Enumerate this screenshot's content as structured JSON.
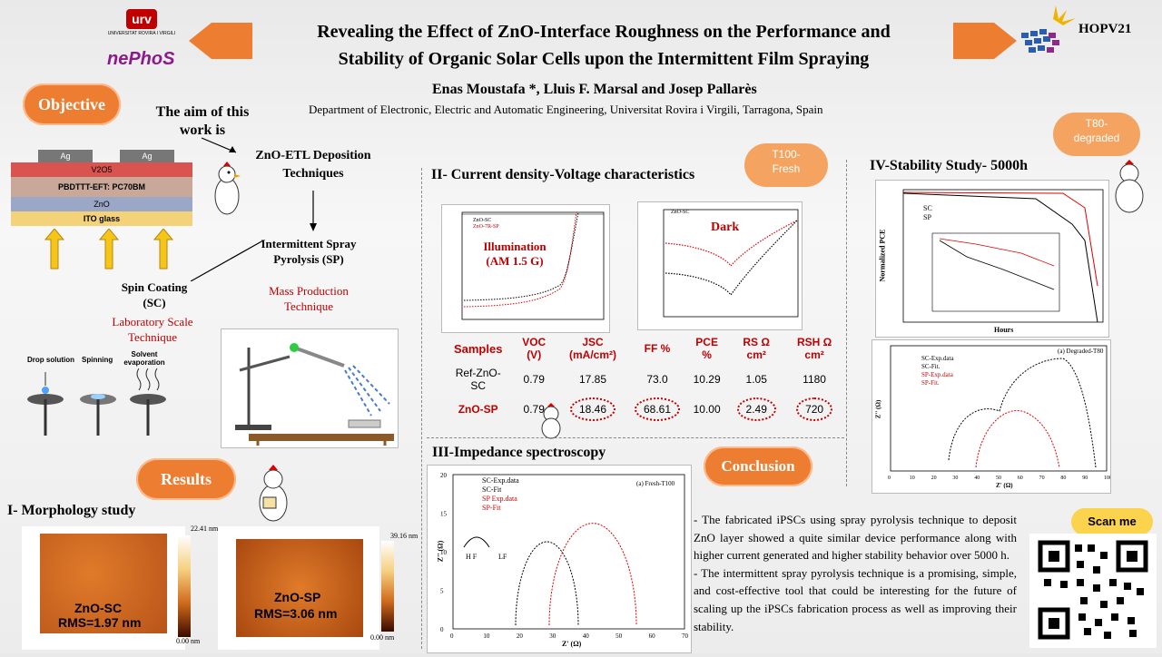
{
  "title_line1": "Revealing the Effect of ZnO-Interface Roughness on the Performance and",
  "title_line2": "Stability of Organic Solar Cells upon the Intermittent Film Spraying",
  "authors": "Enas Moustafa *, Lluis F. Marsal  and Josep Pallarès",
  "affiliation": "Department  of Electronic,  Electric  and  Automatic  Engineering,  Universitat  Rovira  i  Virgili,  Tarragona,  Spain",
  "logos": {
    "urv": "UNIVERSITAT ROVIRA I VIRGILI",
    "nepho": "nePhoS",
    "conf": "HOPV21"
  },
  "badges": {
    "objective": "Objective",
    "results": "Results",
    "conclusion": "Conclusion",
    "t100": "T100-\nFresh",
    "t80": "T80-\ndegraded",
    "scan": "Scan me"
  },
  "objective": {
    "aim": "The aim of this work is",
    "etl": "ZnO-ETL  Deposition Techniques",
    "sp_title": "Intermittent Spray Pyrolysis (SP)",
    "sp_sub": "Mass Production Technique",
    "sc_title": "Spin Coating (SC)",
    "sc_sub": "Laboratory Scale Technique",
    "steps": [
      "Drop solution",
      "Spinning",
      "Solvent evaporation"
    ]
  },
  "device_layers": [
    "Ag",
    "Ag",
    "V2O5",
    "PBDTTT-EFT: PC70BM",
    "ZnO",
    "ITO glass"
  ],
  "morphology": {
    "heading": "I- Morphology study",
    "left_label": "ZnO-SC",
    "left_rms": "RMS=1.97 nm",
    "left_scale_top": "22.41 nm",
    "left_scale_bot": "0.00 nm",
    "right_label": "ZnO-SP",
    "right_rms": "RMS=3.06 nm",
    "right_scale_top": "39.16 nm",
    "right_scale_bot": "0.00 nm"
  },
  "jv": {
    "heading": "II- Current density-Voltage characteristics",
    "illum_label": "Illumination\n(AM 1.5 G)",
    "dark_label": "Dark",
    "legend": [
      "ZnO-SC",
      "ZnO-7R-SP"
    ]
  },
  "table": {
    "headers": [
      "Samples",
      "VOC (V)",
      "JSC (mA/cm²)",
      "FF %",
      "PCE %",
      "RS Ω cm²",
      "RSH Ω cm²"
    ],
    "rows": [
      [
        "Ref-ZnO-SC",
        "0.79",
        "17.85",
        "73.0",
        "10.29",
        "1.05",
        "1180"
      ],
      [
        "ZnO-SP",
        "0.79",
        "18.46",
        "68.61",
        "10.00",
        "2.49",
        "720"
      ]
    ]
  },
  "impedance": {
    "heading": "III-Impedance spectroscopy",
    "legend": [
      "SC-Exp.data",
      "SC-Fit",
      "SP Exp.data",
      "SP-Fit"
    ],
    "note": "(a) Fresh-T100",
    "xlabel": "Z' (Ω)",
    "ylabel": "Z'' (Ω)",
    "hf": "H F",
    "lf": "LF",
    "xticks": [
      "0",
      "10",
      "20",
      "30",
      "40",
      "50",
      "60",
      "70"
    ],
    "yticks": [
      "0",
      "5",
      "10",
      "15",
      "20"
    ]
  },
  "stability": {
    "heading": "IV-Stability Study- 5000h",
    "legend": [
      "SC",
      "SP"
    ],
    "xlabel": "Hours",
    "ylabel": "Normalized PCE",
    "nyquist_legend": [
      "SC-Exp.data",
      "SC-Fit.",
      "SP-Exp.data",
      "SP-Fit."
    ],
    "nyquist_note": "(a) Degraded-T80",
    "nyquist_xlabel": "Z' (Ω)",
    "nyquist_ylabel": "Z'' (Ω)",
    "nyquist_xticks": [
      "0",
      "10",
      "20",
      "30",
      "40",
      "50",
      "60",
      "70",
      "80",
      "90",
      "100"
    ]
  },
  "conclusion": [
    "-      The fabricated iPSCs using spray pyrolysis technique to deposit ZnO layer showed a quite similar device performance along with higher current generated and higher stability behavior over 5000 h.",
    " - The intermittent spray pyrolysis technique is a promising, simple, and cost-effective tool that could be interesting for the future of scaling up the iPSCs fabrication process as well as improving their stability."
  ],
  "colors": {
    "accent": "#ed7d31",
    "red": "#c00000",
    "sc": "#000000",
    "sp": "#e00000"
  }
}
